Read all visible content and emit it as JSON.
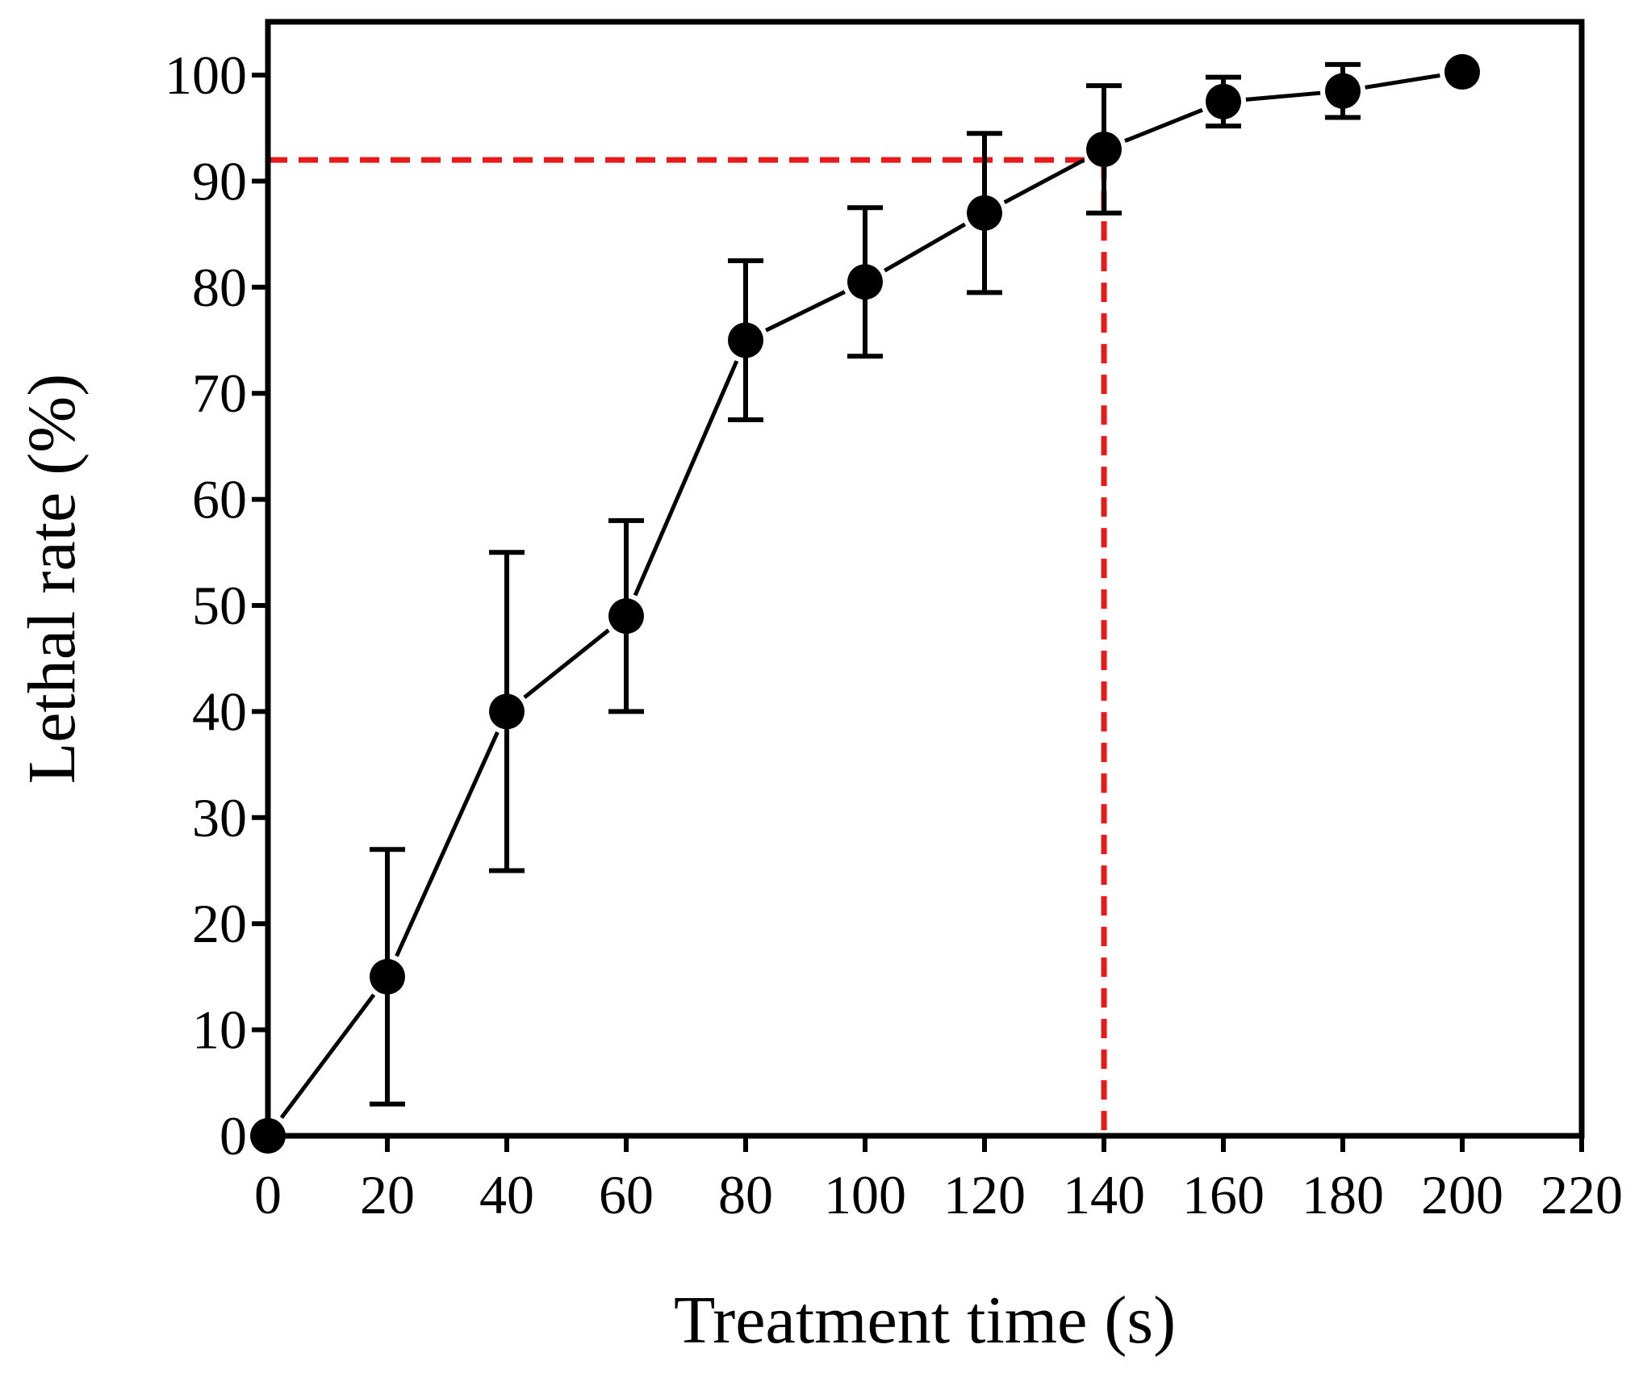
{
  "chart_data": {
    "type": "line",
    "title": "",
    "xlabel": "Treatment time (s)",
    "ylabel": "Lethal rate (%)",
    "xlim": [
      0,
      220
    ],
    "ylim": [
      0,
      105
    ],
    "xticks": [
      "0",
      "20",
      "40",
      "60",
      "80",
      "100",
      "120",
      "140",
      "160",
      "180",
      "200",
      "220"
    ],
    "yticks": [
      "0",
      "10",
      "20",
      "30",
      "40",
      "50",
      "60",
      "70",
      "80",
      "90",
      "100"
    ],
    "grid": false,
    "series": [
      {
        "name": "Lethal rate",
        "marker": "circle",
        "x": [
          0,
          20,
          40,
          60,
          80,
          100,
          120,
          140,
          160,
          180,
          200
        ],
        "y": [
          0,
          15,
          40,
          49,
          75,
          80.5,
          87,
          93,
          97.5,
          98.5,
          100.3
        ],
        "error": [
          0,
          12,
          15,
          9,
          7.5,
          7,
          7.5,
          6,
          2.3,
          2.5,
          0
        ]
      }
    ],
    "reference_lines": [
      {
        "type": "horizontal",
        "y": 92,
        "x_from": 0,
        "x_to": 140,
        "style": "dashed"
      },
      {
        "type": "vertical",
        "x": 140,
        "y_from": 0,
        "y_to": 92,
        "style": "dashed"
      }
    ],
    "colors": {
      "data": "#000000",
      "reference": "#e8191a",
      "axes": "#000000"
    }
  }
}
